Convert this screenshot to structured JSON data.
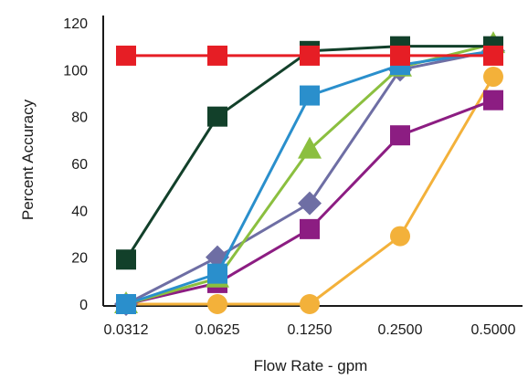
{
  "chart_data": {
    "type": "line",
    "title": "",
    "xlabel": "Flow Rate - gpm",
    "ylabel": "Percent Accuracy",
    "categories": [
      "0.0312",
      "0.0625",
      "0.1250",
      "0.2500",
      "0.5000"
    ],
    "ylim": [
      0,
      120
    ],
    "yticks": [
      0,
      20,
      40,
      60,
      80,
      100,
      120
    ],
    "grid": false,
    "legend": "none",
    "series": [
      {
        "color": "#e61e25",
        "marker": "square",
        "values": [
          106,
          106,
          106,
          106,
          106
        ]
      },
      {
        "color": "#12402a",
        "marker": "square",
        "values": [
          19,
          80,
          108,
          110,
          110
        ]
      },
      {
        "color": "#2a8fcc",
        "marker": "square",
        "values": [
          0,
          13,
          89,
          102,
          108
        ]
      },
      {
        "color": "#8bbf3f",
        "marker": "triangle",
        "values": [
          0,
          11,
          66,
          101,
          111
        ]
      },
      {
        "color": "#6e6ea4",
        "marker": "diamond",
        "values": [
          0,
          20,
          43,
          100,
          108
        ]
      },
      {
        "color": "#8c1d82",
        "marker": "square",
        "values": [
          0,
          9,
          32,
          72,
          87
        ]
      },
      {
        "color": "#f3b13a",
        "marker": "circle",
        "values": [
          0,
          0,
          0,
          29,
          97
        ]
      }
    ]
  }
}
